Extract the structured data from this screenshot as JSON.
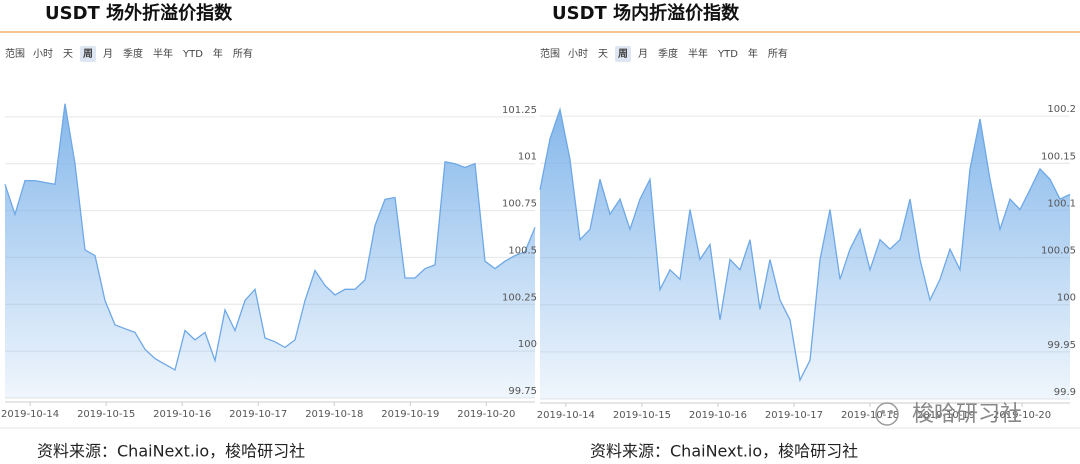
{
  "chart_data": [
    {
      "type": "area",
      "title": "USDT 场外折溢价指数",
      "range_label": "范围",
      "range_buttons": [
        "小时",
        "天",
        "周",
        "月",
        "季度",
        "半年",
        "YTD",
        "年",
        "所有"
      ],
      "selected_button": 2,
      "color": "#6ea8e6",
      "xlim": [
        -0.33,
        6.64
      ],
      "xticks": [
        {
          "value": 0,
          "label": "2019-10-14"
        },
        {
          "value": 1,
          "label": "2019-10-15"
        },
        {
          "value": 2,
          "label": "2019-10-16"
        },
        {
          "value": 3,
          "label": "2019-10-17"
        },
        {
          "value": 4,
          "label": "2019-10-18"
        },
        {
          "value": 5,
          "label": "2019-10-19"
        },
        {
          "value": 6,
          "label": "2019-10-20"
        }
      ],
      "ylim": [
        99.75,
        101.5
      ],
      "yticks": [
        99.75,
        100,
        100.25,
        100.5,
        100.75,
        101,
        101.25
      ],
      "grid": true,
      "values": [
        100.89,
        100.73,
        100.91,
        100.91,
        100.9,
        100.89,
        101.32,
        101.0,
        100.54,
        100.51,
        100.27,
        100.14,
        100.12,
        100.1,
        100.01,
        99.96,
        99.93,
        99.9,
        100.11,
        100.06,
        100.1,
        99.95,
        100.22,
        100.11,
        100.27,
        100.33,
        100.07,
        100.05,
        100.02,
        100.06,
        100.27,
        100.43,
        100.35,
        100.3,
        100.33,
        100.33,
        100.38,
        100.67,
        100.81,
        100.82,
        100.39,
        100.39,
        100.44,
        100.46,
        101.01,
        101.0,
        100.98,
        101.0,
        100.48,
        100.44,
        100.48,
        100.51,
        100.53,
        100.66
      ],
      "source": "资料来源：ChaiNext.io，梭哈研习社"
    },
    {
      "type": "area",
      "title": "USDT 场内折溢价指数",
      "range_label": "范围",
      "range_buttons": [
        "小时",
        "天",
        "周",
        "月",
        "季度",
        "半年",
        "YTD",
        "年",
        "所有"
      ],
      "selected_button": 2,
      "color": "#6ea8e6",
      "xlim": [
        -0.34,
        6.63
      ],
      "xticks": [
        {
          "value": 0,
          "label": "2019-10-14"
        },
        {
          "value": 1,
          "label": "2019-10-15"
        },
        {
          "value": 2,
          "label": "2019-10-16"
        },
        {
          "value": 3,
          "label": "2019-10-17"
        },
        {
          "value": 4,
          "label": "2019-10-18"
        },
        {
          "value": 5,
          "label": "2019-10-19"
        },
        {
          "value": 6,
          "label": "2019-10-20"
        }
      ],
      "ylim": [
        99.9,
        100.25
      ],
      "yticks": [
        99.9,
        99.95,
        100,
        100.05,
        100.1,
        100.15,
        100.2
      ],
      "grid": true,
      "values": [
        100.122,
        100.176,
        100.207,
        100.154,
        100.069,
        100.08,
        100.133,
        100.096,
        100.112,
        100.08,
        100.112,
        100.133,
        100.016,
        100.037,
        100.027,
        100.101,
        100.048,
        100.064,
        99.984,
        100.048,
        100.037,
        100.069,
        99.995,
        100.048,
        100.005,
        99.984,
        99.92,
        99.941,
        100.048,
        100.101,
        100.027,
        100.059,
        100.08,
        100.037,
        100.069,
        100.059,
        100.069,
        100.112,
        100.048,
        100.005,
        100.027,
        100.059,
        100.037,
        100.144,
        100.197,
        100.133,
        100.08,
        100.112,
        100.101,
        100.122,
        100.144,
        100.133,
        100.112,
        100.117
      ],
      "source": "资料来源：ChaiNext.io，梭哈研习社"
    }
  ],
  "watermark": "梭哈研习社"
}
